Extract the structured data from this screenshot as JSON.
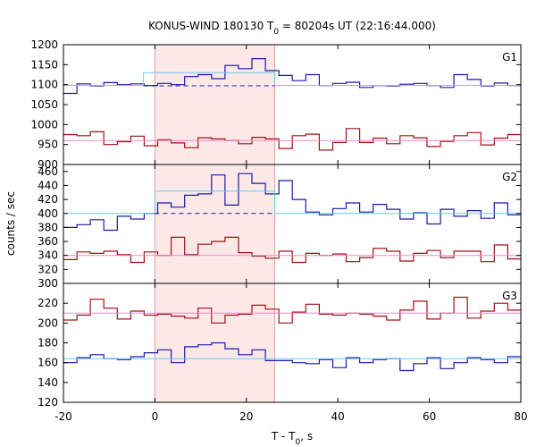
{
  "chart_data": {
    "type": "line",
    "title_prefix": "KONUS-WIND 180130 T",
    "title_sub": "0",
    "title_suffix": " = 80204s UT (22:16:44.000)",
    "xlabel_prefix": "T - T",
    "xlabel_sub": "0",
    "xlabel_suffix": ", s",
    "ylabel": "counts / sec",
    "xlim": [
      -20,
      80
    ],
    "xticks": [
      -20,
      0,
      20,
      40,
      60,
      80
    ],
    "highlight_interval": [
      0,
      26.2
    ],
    "highlight_color": "#fde8e8",
    "colors": {
      "blue": "#1a1aa6",
      "red": "#a01010",
      "cyan": "#66ccee",
      "pink": "#ee88cc",
      "blue_dashed": "#1a1aa6"
    },
    "panels": [
      {
        "label": "G1",
        "ylim": [
          900,
          1200
        ],
        "yticks": [
          900,
          950,
          1000,
          1050,
          1100,
          1150,
          1200
        ],
        "bin_start": -20,
        "bin_width": 2.944,
        "series": [
          {
            "color": "blue",
            "values": [
              1078,
              1102,
              1097,
              1105,
              1100,
              1102,
              1098,
              1103,
              1100,
              1120,
              1125,
              1115,
              1148,
              1140,
              1165,
              1135,
              1123,
              1110,
              1125,
              1098,
              1103,
              1106,
              1093,
              1098,
              1097,
              1101,
              1103,
              1098,
              1093,
              1125,
              1113,
              1097,
              1104,
              1098,
              1113,
              1100
            ]
          },
          {
            "color": "red",
            "values": [
              975,
              972,
              982,
              950,
              957,
              971,
              947,
              962,
              954,
              942,
              967,
              964,
              960,
              952,
              968,
              964,
              940,
              972,
              976,
              936,
              955,
              990,
              955,
              966,
              952,
              972,
              967,
              945,
              958,
              972,
              980,
              949,
              966,
              975,
              954,
              935
            ]
          }
        ],
        "background_level": {
          "color": "pink",
          "value": 960
        },
        "blue_background": {
          "color": "blue_dashed",
          "value": 1097,
          "dashed": true
        },
        "model_box": {
          "color": "cyan",
          "x": [
            -2.5,
            26.2
          ],
          "level": 1130,
          "outer_level": 1098
        }
      },
      {
        "label": "G2",
        "ylim": [
          300,
          470
        ],
        "yticks": [
          300,
          320,
          340,
          360,
          380,
          400,
          420,
          440,
          460
        ],
        "bin_start": -20,
        "bin_width": 2.944,
        "series": [
          {
            "color": "blue",
            "values": [
              380,
              384,
              391,
              376,
              396,
              392,
              400,
              415,
              409,
              426,
              428,
              455,
              412,
              457,
              443,
              428,
              447,
              420,
              402,
              398,
              407,
              415,
              402,
              413,
              406,
              392,
              401,
              385,
              406,
              396,
              404,
              393,
              415,
              398,
              388,
              400
            ]
          },
          {
            "color": "red",
            "values": [
              334,
              345,
              343,
              346,
              341,
              330,
              345,
              340,
              366,
              341,
              356,
              360,
              366,
              344,
              339,
              336,
              346,
              330,
              343,
              340,
              342,
              331,
              337,
              350,
              346,
              332,
              343,
              347,
              337,
              346,
              346,
              331,
              355,
              335,
              366,
              318
            ]
          }
        ],
        "background_level": {
          "color": "pink",
          "value": 340
        },
        "blue_background": {
          "color": "blue_dashed",
          "value": 400,
          "dashed": true
        },
        "model_box": {
          "color": "cyan",
          "x": [
            0,
            26.2
          ],
          "level": 432,
          "outer_level": 400
        }
      },
      {
        "label": "G3",
        "ylim": [
          120,
          240
        ],
        "yticks": [
          120,
          140,
          160,
          180,
          200,
          220
        ],
        "bin_start": -20,
        "bin_width": 2.944,
        "series": [
          {
            "color": "red",
            "values": [
              203,
              208,
              224,
              215,
              204,
              212,
              208,
              209,
              207,
              205,
              215,
              200,
              208,
              209,
              218,
              214,
              200,
              211,
              219,
              209,
              208,
              210,
              209,
              207,
              203,
              213,
              222,
              204,
              210,
              226,
              205,
              212,
              220,
              213,
              210,
              214
            ]
          },
          {
            "color": "blue",
            "values": [
              160,
              165,
              168,
              164,
              163,
              166,
              170,
              173,
              160,
              176,
              178,
              180,
              174,
              168,
              173,
              162,
              162,
              160,
              159,
              163,
              155,
              165,
              160,
              163,
              164,
              152,
              159,
              165,
              154,
              160,
              165,
              163,
              160,
              166,
              157,
              163
            ]
          }
        ],
        "background_level": {
          "color": "pink",
          "value": 210
        },
        "blue_background": {
          "color": "cyan",
          "value": 164,
          "dashed": false
        }
      }
    ]
  }
}
